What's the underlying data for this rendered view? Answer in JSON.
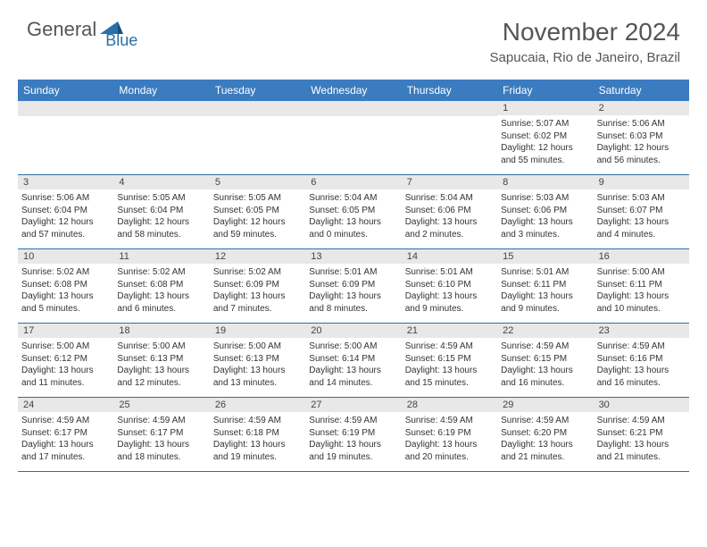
{
  "logo": {
    "text1": "General",
    "text2": "Blue"
  },
  "title": "November 2024",
  "location": "Sapucaia, Rio de Janeiro, Brazil",
  "colors": {
    "header_bg": "#3b7bbf",
    "header_text": "#ffffff",
    "daynum_bg": "#e8e8e8",
    "border": "#2b6fa8",
    "logo_blue": "#2b6fa8",
    "text": "#333333"
  },
  "day_names": [
    "Sunday",
    "Monday",
    "Tuesday",
    "Wednesday",
    "Thursday",
    "Friday",
    "Saturday"
  ],
  "weeks": [
    [
      null,
      null,
      null,
      null,
      null,
      {
        "n": "1",
        "sr": "Sunrise: 5:07 AM",
        "ss": "Sunset: 6:02 PM",
        "d1": "Daylight: 12 hours",
        "d2": "and 55 minutes."
      },
      {
        "n": "2",
        "sr": "Sunrise: 5:06 AM",
        "ss": "Sunset: 6:03 PM",
        "d1": "Daylight: 12 hours",
        "d2": "and 56 minutes."
      }
    ],
    [
      {
        "n": "3",
        "sr": "Sunrise: 5:06 AM",
        "ss": "Sunset: 6:04 PM",
        "d1": "Daylight: 12 hours",
        "d2": "and 57 minutes."
      },
      {
        "n": "4",
        "sr": "Sunrise: 5:05 AM",
        "ss": "Sunset: 6:04 PM",
        "d1": "Daylight: 12 hours",
        "d2": "and 58 minutes."
      },
      {
        "n": "5",
        "sr": "Sunrise: 5:05 AM",
        "ss": "Sunset: 6:05 PM",
        "d1": "Daylight: 12 hours",
        "d2": "and 59 minutes."
      },
      {
        "n": "6",
        "sr": "Sunrise: 5:04 AM",
        "ss": "Sunset: 6:05 PM",
        "d1": "Daylight: 13 hours",
        "d2": "and 0 minutes."
      },
      {
        "n": "7",
        "sr": "Sunrise: 5:04 AM",
        "ss": "Sunset: 6:06 PM",
        "d1": "Daylight: 13 hours",
        "d2": "and 2 minutes."
      },
      {
        "n": "8",
        "sr": "Sunrise: 5:03 AM",
        "ss": "Sunset: 6:06 PM",
        "d1": "Daylight: 13 hours",
        "d2": "and 3 minutes."
      },
      {
        "n": "9",
        "sr": "Sunrise: 5:03 AM",
        "ss": "Sunset: 6:07 PM",
        "d1": "Daylight: 13 hours",
        "d2": "and 4 minutes."
      }
    ],
    [
      {
        "n": "10",
        "sr": "Sunrise: 5:02 AM",
        "ss": "Sunset: 6:08 PM",
        "d1": "Daylight: 13 hours",
        "d2": "and 5 minutes."
      },
      {
        "n": "11",
        "sr": "Sunrise: 5:02 AM",
        "ss": "Sunset: 6:08 PM",
        "d1": "Daylight: 13 hours",
        "d2": "and 6 minutes."
      },
      {
        "n": "12",
        "sr": "Sunrise: 5:02 AM",
        "ss": "Sunset: 6:09 PM",
        "d1": "Daylight: 13 hours",
        "d2": "and 7 minutes."
      },
      {
        "n": "13",
        "sr": "Sunrise: 5:01 AM",
        "ss": "Sunset: 6:09 PM",
        "d1": "Daylight: 13 hours",
        "d2": "and 8 minutes."
      },
      {
        "n": "14",
        "sr": "Sunrise: 5:01 AM",
        "ss": "Sunset: 6:10 PM",
        "d1": "Daylight: 13 hours",
        "d2": "and 9 minutes."
      },
      {
        "n": "15",
        "sr": "Sunrise: 5:01 AM",
        "ss": "Sunset: 6:11 PM",
        "d1": "Daylight: 13 hours",
        "d2": "and 9 minutes."
      },
      {
        "n": "16",
        "sr": "Sunrise: 5:00 AM",
        "ss": "Sunset: 6:11 PM",
        "d1": "Daylight: 13 hours",
        "d2": "and 10 minutes."
      }
    ],
    [
      {
        "n": "17",
        "sr": "Sunrise: 5:00 AM",
        "ss": "Sunset: 6:12 PM",
        "d1": "Daylight: 13 hours",
        "d2": "and 11 minutes."
      },
      {
        "n": "18",
        "sr": "Sunrise: 5:00 AM",
        "ss": "Sunset: 6:13 PM",
        "d1": "Daylight: 13 hours",
        "d2": "and 12 minutes."
      },
      {
        "n": "19",
        "sr": "Sunrise: 5:00 AM",
        "ss": "Sunset: 6:13 PM",
        "d1": "Daylight: 13 hours",
        "d2": "and 13 minutes."
      },
      {
        "n": "20",
        "sr": "Sunrise: 5:00 AM",
        "ss": "Sunset: 6:14 PM",
        "d1": "Daylight: 13 hours",
        "d2": "and 14 minutes."
      },
      {
        "n": "21",
        "sr": "Sunrise: 4:59 AM",
        "ss": "Sunset: 6:15 PM",
        "d1": "Daylight: 13 hours",
        "d2": "and 15 minutes."
      },
      {
        "n": "22",
        "sr": "Sunrise: 4:59 AM",
        "ss": "Sunset: 6:15 PM",
        "d1": "Daylight: 13 hours",
        "d2": "and 16 minutes."
      },
      {
        "n": "23",
        "sr": "Sunrise: 4:59 AM",
        "ss": "Sunset: 6:16 PM",
        "d1": "Daylight: 13 hours",
        "d2": "and 16 minutes."
      }
    ],
    [
      {
        "n": "24",
        "sr": "Sunrise: 4:59 AM",
        "ss": "Sunset: 6:17 PM",
        "d1": "Daylight: 13 hours",
        "d2": "and 17 minutes."
      },
      {
        "n": "25",
        "sr": "Sunrise: 4:59 AM",
        "ss": "Sunset: 6:17 PM",
        "d1": "Daylight: 13 hours",
        "d2": "and 18 minutes."
      },
      {
        "n": "26",
        "sr": "Sunrise: 4:59 AM",
        "ss": "Sunset: 6:18 PM",
        "d1": "Daylight: 13 hours",
        "d2": "and 19 minutes."
      },
      {
        "n": "27",
        "sr": "Sunrise: 4:59 AM",
        "ss": "Sunset: 6:19 PM",
        "d1": "Daylight: 13 hours",
        "d2": "and 19 minutes."
      },
      {
        "n": "28",
        "sr": "Sunrise: 4:59 AM",
        "ss": "Sunset: 6:19 PM",
        "d1": "Daylight: 13 hours",
        "d2": "and 20 minutes."
      },
      {
        "n": "29",
        "sr": "Sunrise: 4:59 AM",
        "ss": "Sunset: 6:20 PM",
        "d1": "Daylight: 13 hours",
        "d2": "and 21 minutes."
      },
      {
        "n": "30",
        "sr": "Sunrise: 4:59 AM",
        "ss": "Sunset: 6:21 PM",
        "d1": "Daylight: 13 hours",
        "d2": "and 21 minutes."
      }
    ]
  ]
}
